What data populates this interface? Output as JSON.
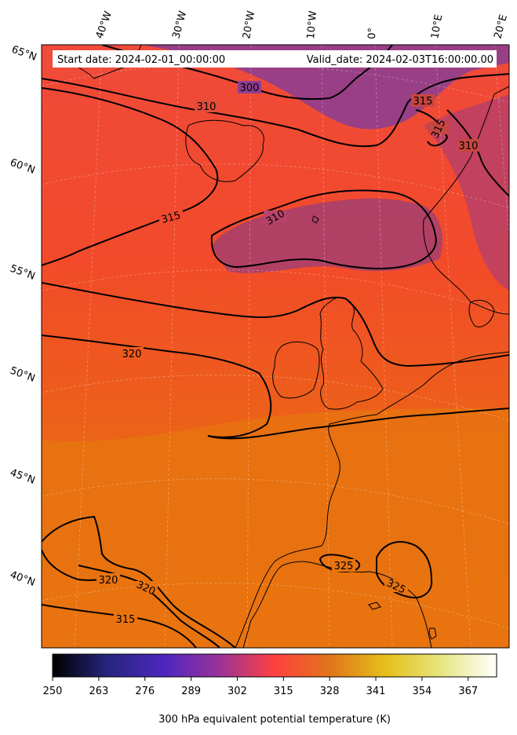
{
  "header": {
    "start_date": "Start date: 2024-02-01_00:00:00",
    "valid_date": "Valid_date: 2024-02-03T16:00:00.00"
  },
  "graticule": {
    "longitude_labels": [
      "40°W",
      "30°W",
      "20°W",
      "10°W",
      "0°",
      "10°E",
      "20°E"
    ],
    "latitude_labels": [
      "65°N",
      "60°N",
      "55°N",
      "50°N",
      "45°N",
      "40°N"
    ]
  },
  "contour_labels": [
    "300",
    "310",
    "315",
    "315",
    "310",
    "310",
    "315",
    "320",
    "325",
    "325",
    "320",
    "320",
    "315"
  ],
  "colorbar": {
    "title": "300 hPa equivalent potential temperature (K)",
    "colormap": "CMRmap",
    "range": [
      250,
      375
    ],
    "ticks": [
      "250",
      "263",
      "276",
      "289",
      "302",
      "315",
      "328",
      "341",
      "354",
      "367"
    ],
    "colors": [
      "#000000",
      "#26267f",
      "#4d26bf",
      "#993399",
      "#ff4040",
      "#e0761a",
      "#e6bf1a",
      "#e6e680",
      "#ffffff"
    ]
  },
  "field_colors": {
    "low_theta_purple": "#8e3e8e",
    "mid_theta_red": "#f24630",
    "high_theta_orange": "#e8730f",
    "contour_line": "#000000",
    "coastline": "#000000"
  }
}
